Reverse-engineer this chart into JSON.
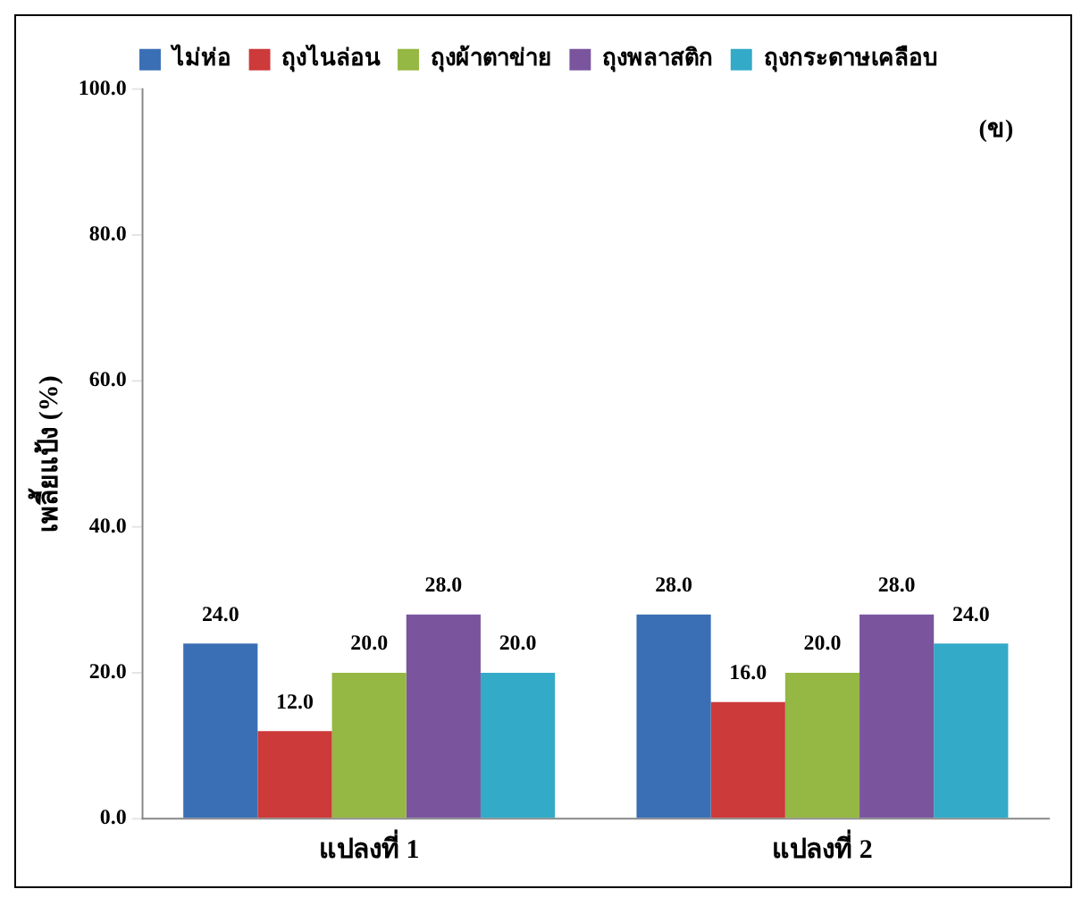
{
  "chart_data": {
    "type": "bar",
    "ylabel": "เพลี้ยแป้ง (%)",
    "categories": [
      "แปลงที่ 1",
      "แปลงที่ 2"
    ],
    "series": [
      {
        "name": "ไม่ห่อ",
        "color": "#3a6fb5",
        "values": [
          24,
          28
        ],
        "value_labels": [
          "24.0",
          "28.0"
        ]
      },
      {
        "name": "ถุงไนล่อน",
        "color": "#cc3a3a",
        "values": [
          12,
          16
        ],
        "value_labels": [
          "12.0",
          "16.0"
        ]
      },
      {
        "name": "ถุงผ้าตาข่าย",
        "color": "#95b743",
        "values": [
          20,
          20
        ],
        "value_labels": [
          "20.0",
          "20.0"
        ]
      },
      {
        "name": "ถุงพลาสติก",
        "color": "#7a559e",
        "values": [
          28,
          28
        ],
        "value_labels": [
          "28.0",
          "28.0"
        ]
      },
      {
        "name": "ถุงกระดาษเคลือบ",
        "color": "#33aac8",
        "values": [
          20,
          24
        ],
        "value_labels": [
          "20.0",
          "24.0"
        ]
      }
    ],
    "ylim": [
      0,
      100
    ],
    "yticks": [
      {
        "value": 0,
        "label": "0.0"
      },
      {
        "value": 20,
        "label": "20.0"
      },
      {
        "value": 40,
        "label": "40.0"
      },
      {
        "value": 60,
        "label": "60.0"
      },
      {
        "value": 80,
        "label": "80.0"
      },
      {
        "value": 100,
        "label": "100.0"
      }
    ],
    "grid": false,
    "legend": "top",
    "annotations": [
      "(ข)"
    ]
  }
}
